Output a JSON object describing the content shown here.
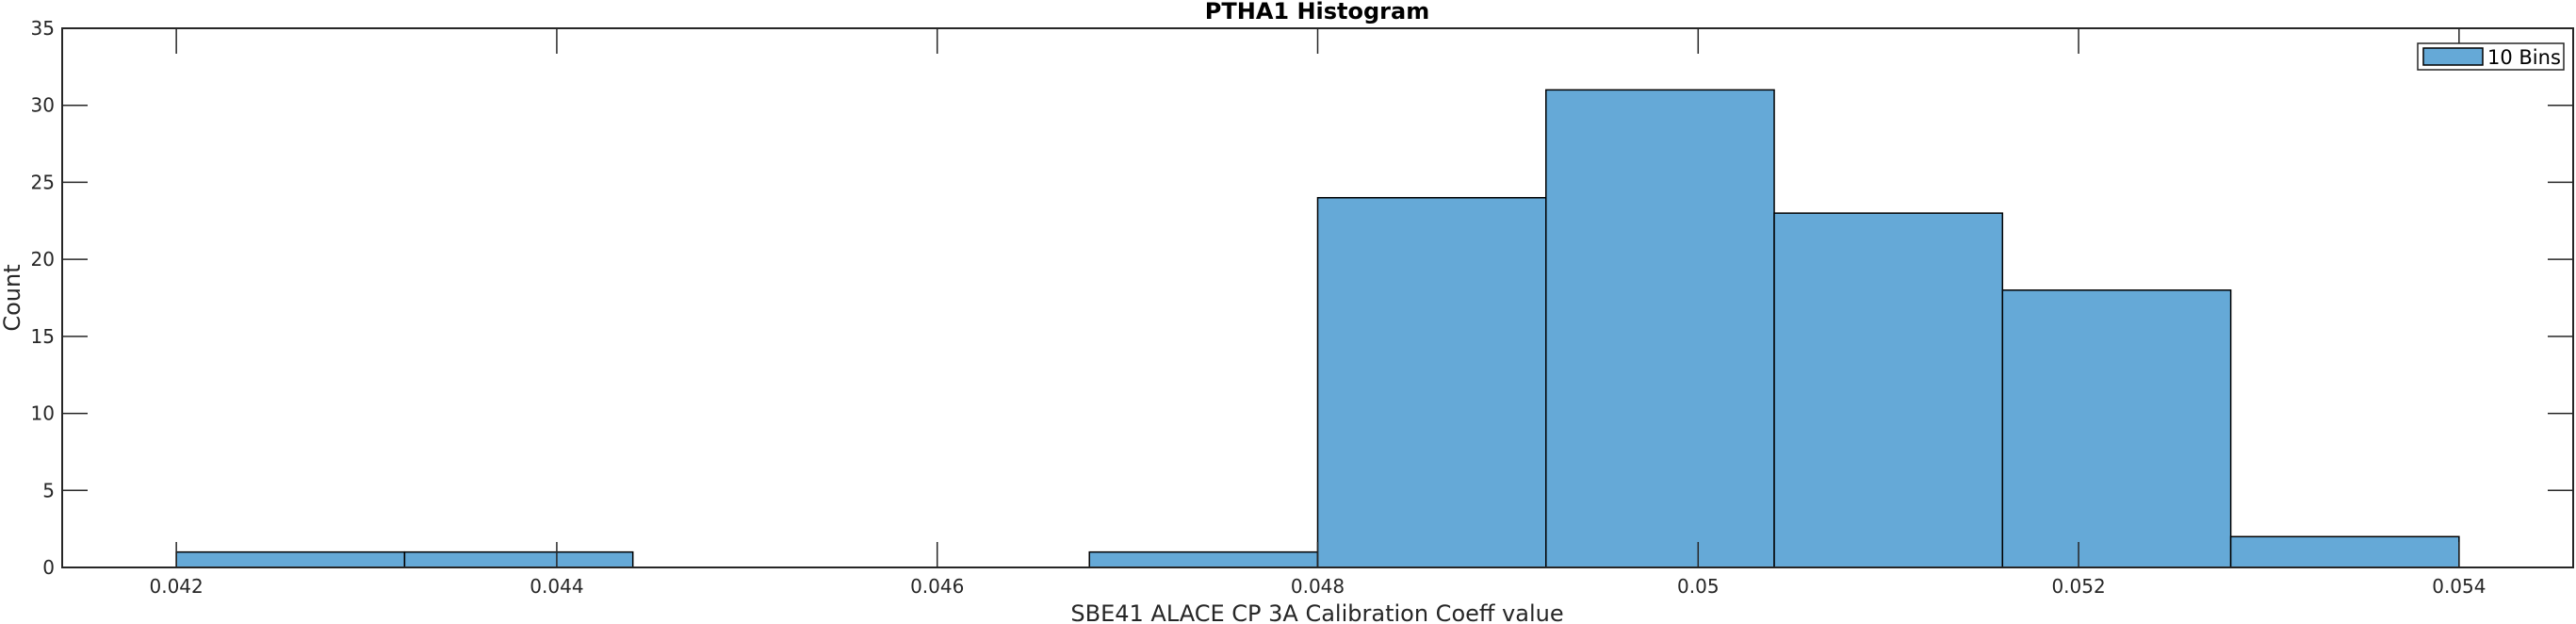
{
  "chart_data": {
    "type": "bar",
    "title": "PTHA1 Histogram",
    "xlabel": "SBE41 ALACE CP 3A Calibration Coeff value",
    "ylabel": "Count",
    "xlim": [
      0.0414,
      0.0546
    ],
    "ylim": [
      0,
      35
    ],
    "bin_edges": [
      0.042,
      0.0432,
      0.0444,
      0.0456,
      0.0468,
      0.048,
      0.0492,
      0.0504,
      0.0516,
      0.0528,
      0.054
    ],
    "values": [
      1,
      1,
      0,
      0,
      1,
      24,
      31,
      23,
      18,
      2
    ],
    "xticks": [
      0.042,
      0.044,
      0.046,
      0.048,
      0.05,
      0.052,
      0.054
    ],
    "xtick_labels": [
      "0.042",
      "0.044",
      "0.046",
      "0.048",
      "0.05",
      "0.052",
      "0.054"
    ],
    "yticks": [
      0,
      5,
      10,
      15,
      20,
      25,
      30,
      35
    ],
    "ytick_labels": [
      "0",
      "5",
      "10",
      "15",
      "20",
      "25",
      "30",
      "35"
    ],
    "legend": {
      "entries": [
        "10 Bins"
      ],
      "placement": "top-right"
    },
    "bar_color": "#65a9d7",
    "edge_color": "#000000",
    "grid": false
  }
}
